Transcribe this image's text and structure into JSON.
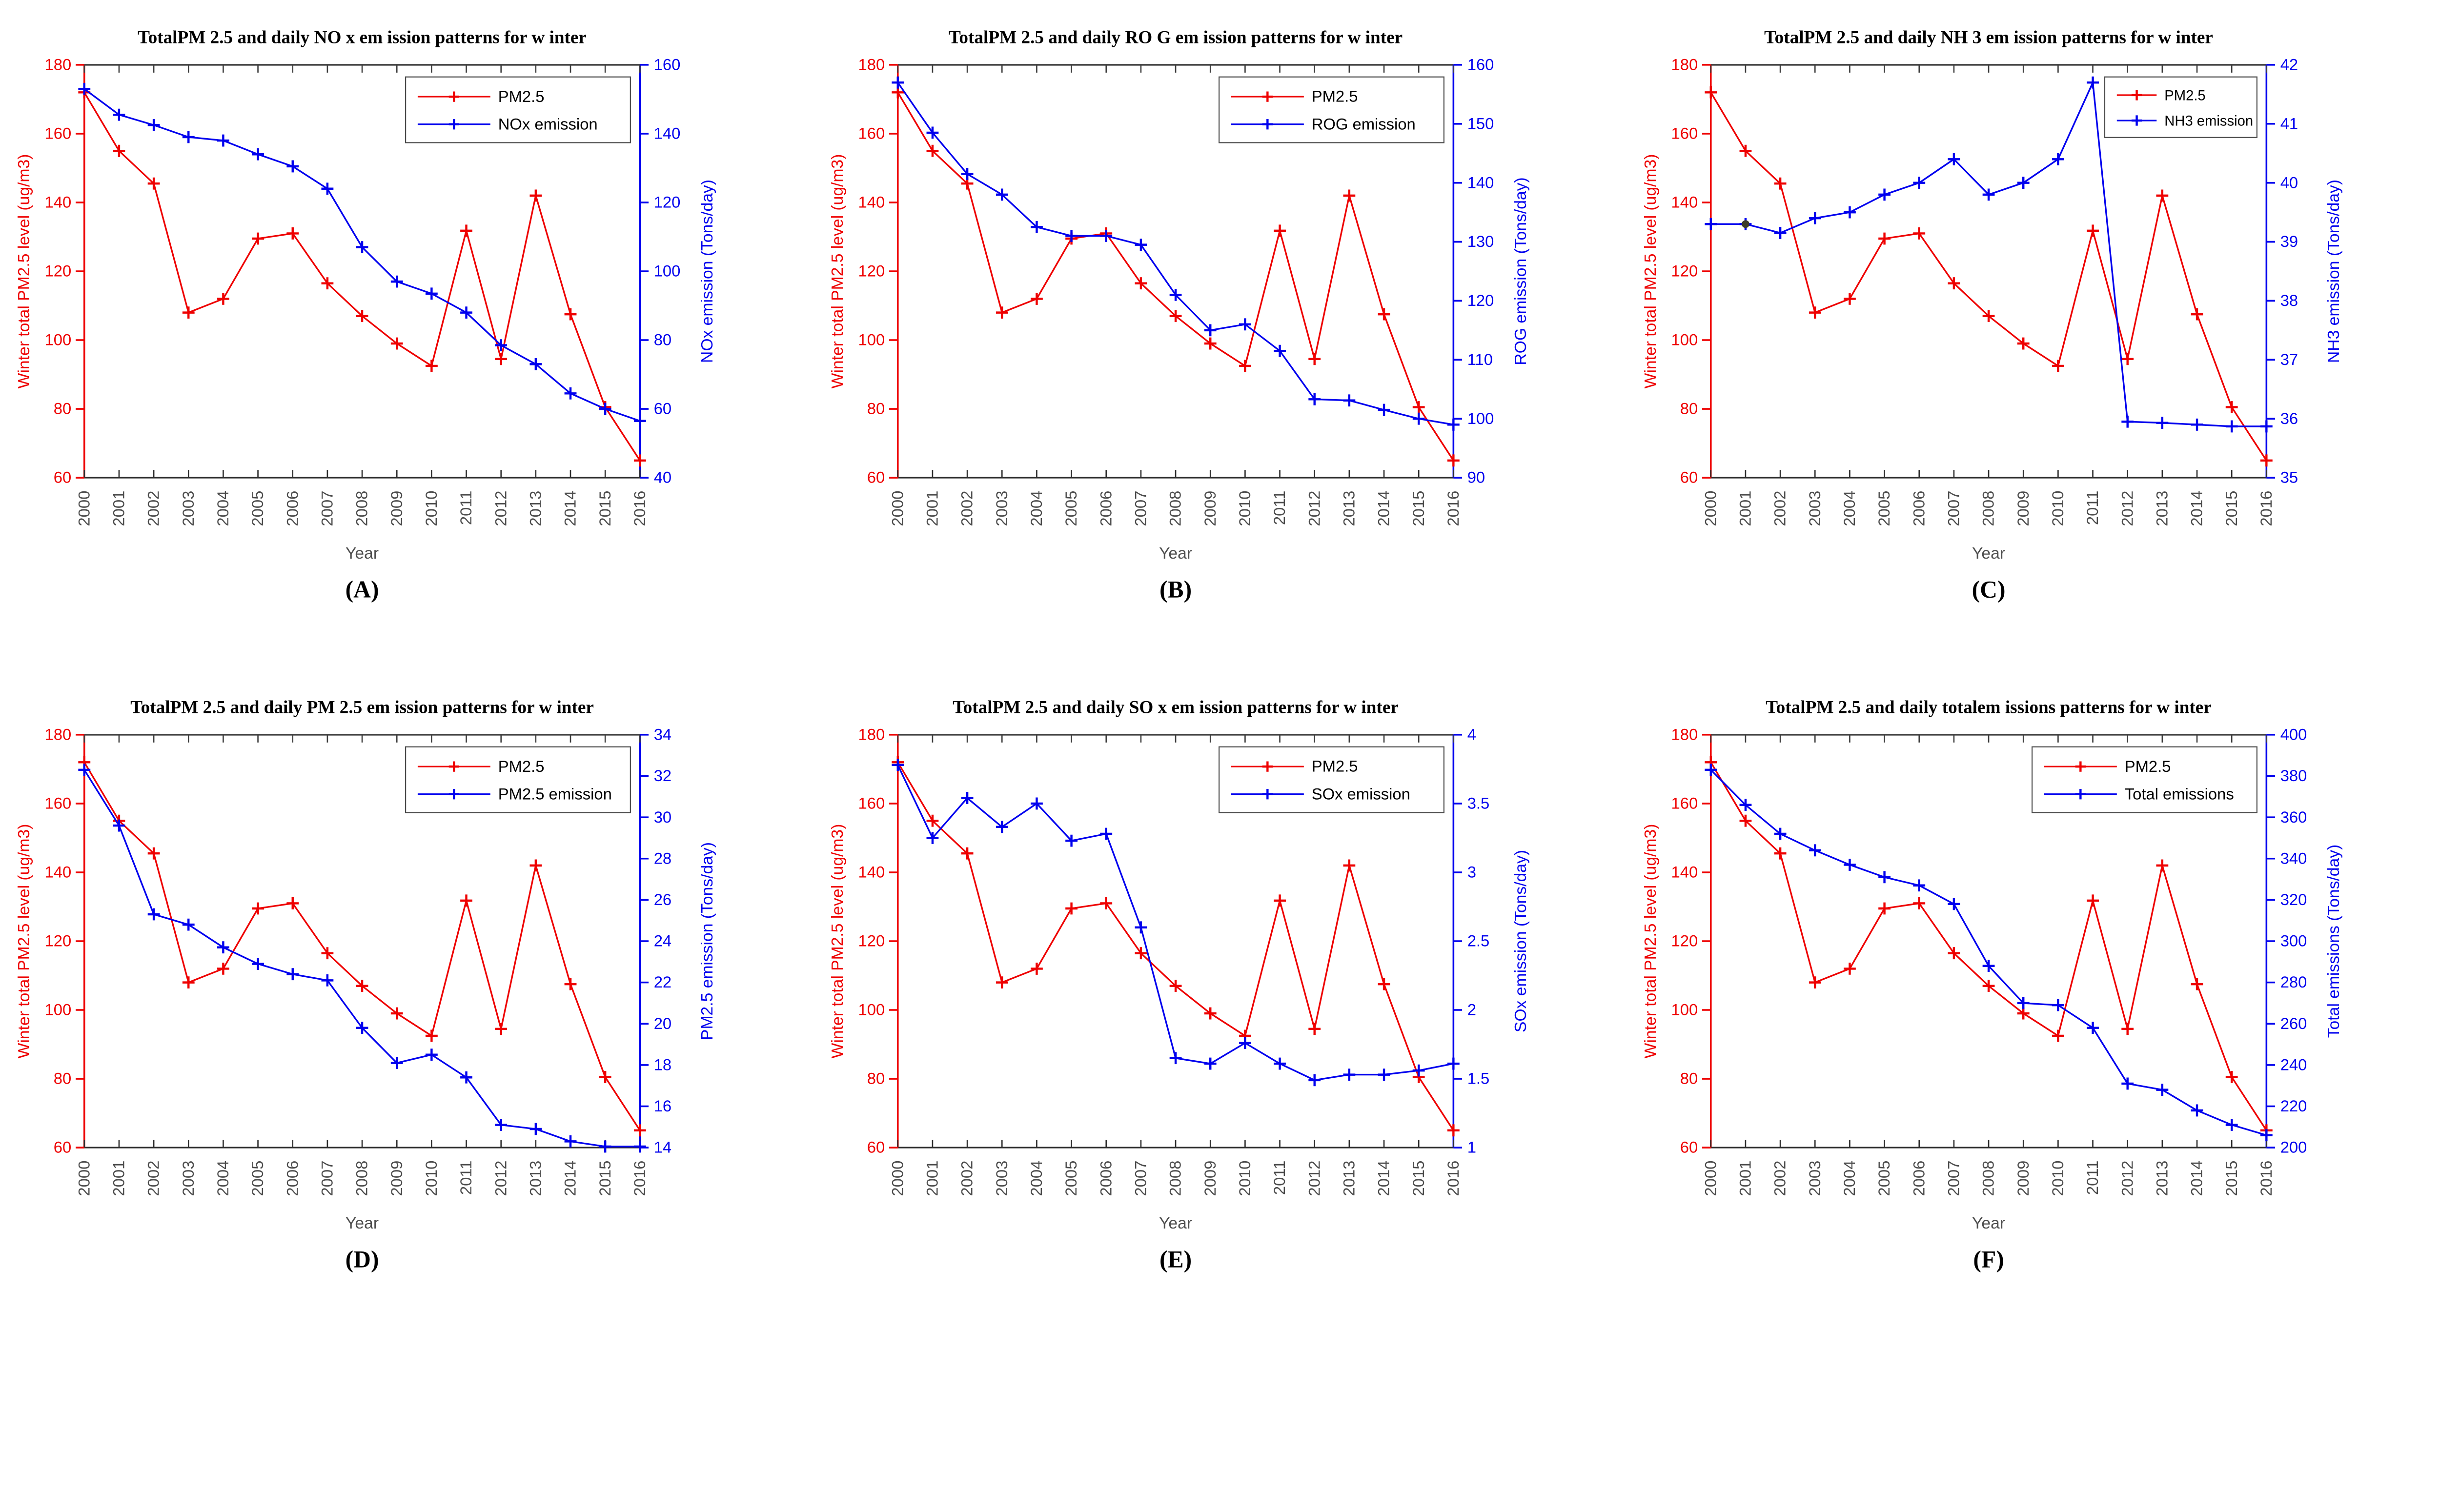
{
  "page": {
    "background": "#ffffff"
  },
  "shared": {
    "x_label": "Year",
    "left_axis_label": "Winter total PM2.5 level (ug/m3)",
    "years": [
      2000,
      2001,
      2002,
      2003,
      2004,
      2005,
      2006,
      2007,
      2008,
      2009,
      2010,
      2011,
      2012,
      2013,
      2014,
      2015,
      2016
    ],
    "colors": {
      "pm25": "#ee0000",
      "emission": "#0000ee",
      "title_text": "#000000",
      "x_tick_text": "#4d4d4d",
      "frame_top": "#3f3f3f",
      "frame_bottom": "#2e2e2e",
      "legend_border": "#4d4d4d",
      "caption_text": "#000000"
    }
  },
  "chart_data": [
    {
      "id": "A",
      "type": "line",
      "caption": "(A)",
      "title": "TotalPM 2.5 and daily NO x em ission patterns for w inter",
      "xlabel": "Year",
      "categories": [
        2000,
        2001,
        2002,
        2003,
        2004,
        2005,
        2006,
        2007,
        2008,
        2009,
        2010,
        2011,
        2012,
        2013,
        2014,
        2015,
        2016
      ],
      "left_axis": {
        "label": "Winter total PM2.5 level (ug/m3)",
        "min": 60,
        "max": 180,
        "step": 20
      },
      "right_axis": {
        "label": "NOx emission (Tons/day)",
        "min": 40,
        "max": 160,
        "step": 20
      },
      "legend_position": "top-right",
      "grid": false,
      "series": [
        {
          "name": "PM2.5",
          "axis": "left",
          "values": [
            172,
            155,
            145.5,
            108,
            112,
            129.5,
            131,
            116.5,
            107,
            99,
            92.5,
            131.8,
            94.5,
            142,
            107.5,
            80.5,
            65
          ]
        },
        {
          "name": "NOx emission",
          "axis": "right",
          "values": [
            153,
            145.5,
            142.5,
            139,
            138,
            134,
            130.5,
            124,
            107,
            97,
            93.5,
            88,
            78.5,
            73,
            64.5,
            60,
            56.5
          ]
        }
      ]
    },
    {
      "id": "B",
      "type": "line",
      "caption": "(B)",
      "title": "TotalPM 2.5 and daily RO G em ission patterns for w inter",
      "xlabel": "Year",
      "categories": [
        2000,
        2001,
        2002,
        2003,
        2004,
        2005,
        2006,
        2007,
        2008,
        2009,
        2010,
        2011,
        2012,
        2013,
        2014,
        2015,
        2016
      ],
      "left_axis": {
        "label": "Winter total PM2.5 level (ug/m3)",
        "min": 60,
        "max": 180,
        "step": 20
      },
      "right_axis": {
        "label": "ROG emission (Tons/day)",
        "min": 90,
        "max": 160,
        "step": 10
      },
      "legend_position": "top-right",
      "grid": false,
      "series": [
        {
          "name": "PM2.5",
          "axis": "left",
          "values": [
            172,
            155,
            145.5,
            108,
            112,
            129.5,
            131,
            116.5,
            107,
            99,
            92.5,
            131.8,
            94.5,
            142,
            107.5,
            80.5,
            65
          ]
        },
        {
          "name": "ROG emission",
          "axis": "right",
          "values": [
            157,
            148.5,
            141.5,
            138,
            132.5,
            131,
            131,
            129.5,
            121,
            115,
            116,
            111.5,
            103.3,
            103.1,
            101.5,
            100,
            99
          ]
        }
      ]
    },
    {
      "id": "C",
      "type": "line",
      "caption": "(C)",
      "title": "TotalPM 2.5 and daily NH 3 em ission patterns for w inter",
      "xlabel": "Year",
      "categories": [
        2000,
        2001,
        2002,
        2003,
        2004,
        2005,
        2006,
        2007,
        2008,
        2009,
        2010,
        2011,
        2012,
        2013,
        2014,
        2015,
        2016
      ],
      "left_axis": {
        "label": "Winter total PM2.5 level (ug/m3)",
        "min": 60,
        "max": 180,
        "step": 20
      },
      "right_axis": {
        "label": "NH3 emission (Tons/day)",
        "min": 35,
        "max": 42,
        "step": 1
      },
      "legend_position": "top-right",
      "grid": false,
      "stray_dot": {
        "year": 2001,
        "series": "NH3 emission",
        "color": "#3c3c28"
      },
      "series": [
        {
          "name": "PM2.5",
          "axis": "left",
          "values": [
            172,
            155,
            145.5,
            108,
            112,
            129.5,
            131,
            116.5,
            107,
            99,
            92.5,
            131.8,
            94.5,
            142,
            107.5,
            80.5,
            65
          ]
        },
        {
          "name": "NH3 emission",
          "axis": "right",
          "values": [
            39.3,
            39.3,
            39.15,
            39.4,
            39.5,
            39.8,
            40.0,
            40.4,
            39.8,
            40.0,
            40.4,
            41.7,
            35.95,
            35.93,
            35.9,
            35.87,
            35.87
          ]
        }
      ]
    },
    {
      "id": "D",
      "type": "line",
      "caption": "(D)",
      "title": "TotalPM 2.5 and daily PM 2.5 em ission patterns for w inter",
      "xlabel": "Year",
      "categories": [
        2000,
        2001,
        2002,
        2003,
        2004,
        2005,
        2006,
        2007,
        2008,
        2009,
        2010,
        2011,
        2012,
        2013,
        2014,
        2015,
        2016
      ],
      "left_axis": {
        "label": "Winter total PM2.5 level (ug/m3)",
        "min": 60,
        "max": 180,
        "step": 20
      },
      "right_axis": {
        "label": "PM2.5 emission (Tons/day)",
        "min": 14,
        "max": 34,
        "step": 2
      },
      "legend_position": "top-right",
      "grid": false,
      "series": [
        {
          "name": "PM2.5",
          "axis": "left",
          "values": [
            172,
            155,
            145.5,
            108,
            112,
            129.5,
            131,
            116.5,
            107,
            99,
            92.5,
            131.8,
            94.5,
            142,
            107.5,
            80.5,
            65
          ]
        },
        {
          "name": "PM2.5 emission",
          "axis": "right",
          "values": [
            32.3,
            29.6,
            25.3,
            24.8,
            23.7,
            22.9,
            22.4,
            22.1,
            19.8,
            18.1,
            18.5,
            17.4,
            15.1,
            14.9,
            14.3,
            14.05,
            14.05
          ]
        }
      ]
    },
    {
      "id": "E",
      "type": "line",
      "caption": "(E)",
      "title": "TotalPM 2.5 and daily SO x em ission patterns for w inter",
      "xlabel": "Year",
      "categories": [
        2000,
        2001,
        2002,
        2003,
        2004,
        2005,
        2006,
        2007,
        2008,
        2009,
        2010,
        2011,
        2012,
        2013,
        2014,
        2015,
        2016
      ],
      "left_axis": {
        "label": "Winter total PM2.5 level (ug/m3)",
        "min": 60,
        "max": 180,
        "step": 20
      },
      "right_axis": {
        "label": "SOx emission (Tons/day)",
        "min": 1,
        "max": 4,
        "step": 0.5
      },
      "legend_position": "top-right",
      "grid": false,
      "series": [
        {
          "name": "PM2.5",
          "axis": "left",
          "values": [
            172,
            155,
            145.5,
            108,
            112,
            129.5,
            131,
            116.5,
            107,
            99,
            92.5,
            131.8,
            94.5,
            142,
            107.5,
            80.5,
            65
          ]
        },
        {
          "name": "SOx emission",
          "axis": "right",
          "values": [
            3.78,
            3.25,
            3.54,
            3.33,
            3.5,
            3.23,
            3.28,
            2.6,
            1.65,
            1.61,
            1.76,
            1.61,
            1.49,
            1.53,
            1.53,
            1.56,
            1.61
          ]
        }
      ]
    },
    {
      "id": "F",
      "type": "line",
      "caption": "(F)",
      "title": "TotalPM 2.5 and daily totalem issions patterns for w inter",
      "xlabel": "Year",
      "categories": [
        2000,
        2001,
        2002,
        2003,
        2004,
        2005,
        2006,
        2007,
        2008,
        2009,
        2010,
        2011,
        2012,
        2013,
        2014,
        2015,
        2016
      ],
      "left_axis": {
        "label": "Winter total PM2.5 level (ug/m3)",
        "min": 60,
        "max": 180,
        "step": 20
      },
      "right_axis": {
        "label": "Total emissions (Tons/day)",
        "min": 200,
        "max": 400,
        "step": 20
      },
      "legend_position": "top-right",
      "grid": false,
      "series": [
        {
          "name": "PM2.5",
          "axis": "left",
          "values": [
            172,
            155,
            145.5,
            108,
            112,
            129.5,
            131,
            116.5,
            107,
            99,
            92.5,
            131.8,
            94.5,
            142,
            107.5,
            80.5,
            65
          ]
        },
        {
          "name": "Total emissions",
          "axis": "right",
          "values": [
            383,
            366,
            352,
            344,
            337,
            331,
            327,
            318,
            288,
            270,
            269,
            258,
            231,
            228,
            218,
            211,
            206
          ]
        }
      ]
    }
  ]
}
